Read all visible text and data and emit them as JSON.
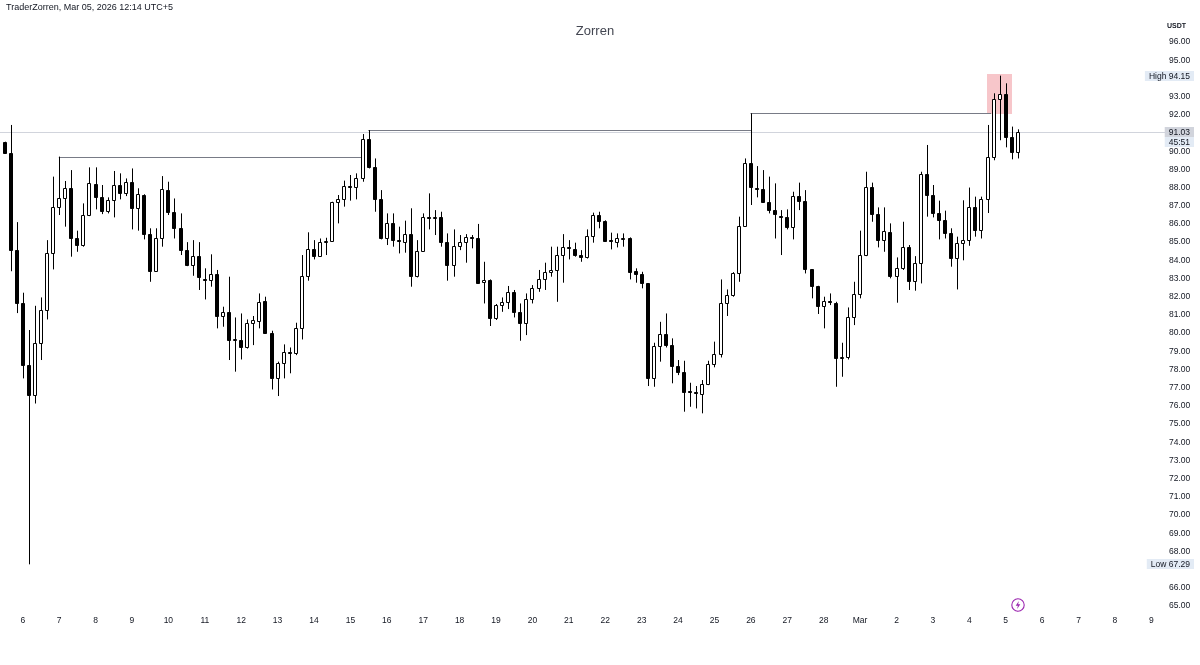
{
  "chart_data": {
    "type": "candlestick",
    "title": "Zorren",
    "ylabel": "USDT",
    "annotations": [
      "TraderZorren, Mar 05, 2026 12:14 UTC+5",
      "High 94.15",
      "Low 67.29",
      {
        "text": "45:51",
        "y": 91.03
      }
    ],
    "x": [
      "2026-02-05T12:00",
      "2026-02-05T16:00",
      "2026-02-05T20:00",
      "2026-02-06T00:00",
      "2026-02-06T04:00",
      "2026-02-06T08:00",
      "2026-02-06T12:00",
      "2026-02-06T16:00",
      "2026-02-06T20:00",
      "2026-02-07T00:00",
      "2026-02-07T04:00",
      "2026-02-07T08:00",
      "2026-02-07T12:00",
      "2026-02-07T16:00",
      "2026-02-07T20:00",
      "2026-02-08T00:00",
      "2026-02-08T04:00",
      "2026-02-08T08:00",
      "2026-02-08T12:00",
      "2026-02-08T16:00",
      "2026-02-08T20:00",
      "2026-02-09T00:00",
      "2026-02-09T04:00",
      "2026-02-09T08:00",
      "2026-02-09T12:00",
      "2026-02-09T16:00",
      "2026-02-09T20:00",
      "2026-02-10T00:00",
      "2026-02-10T04:00",
      "2026-02-10T08:00",
      "2026-02-10T12:00",
      "2026-02-10T16:00",
      "2026-02-10T20:00",
      "2026-02-11T00:00",
      "2026-02-11T04:00",
      "2026-02-11T08:00",
      "2026-02-11T12:00",
      "2026-02-11T16:00",
      "2026-02-11T20:00",
      "2026-02-12T00:00",
      "2026-02-12T04:00",
      "2026-02-12T08:00",
      "2026-02-12T12:00",
      "2026-02-12T16:00",
      "2026-02-12T20:00",
      "2026-02-13T00:00",
      "2026-02-13T04:00",
      "2026-02-13T08:00",
      "2026-02-13T12:00",
      "2026-02-13T16:00",
      "2026-02-13T20:00",
      "2026-02-14T00:00",
      "2026-02-14T04:00",
      "2026-02-14T08:00",
      "2026-02-14T12:00",
      "2026-02-14T16:00",
      "2026-02-14T20:00",
      "2026-02-15T00:00",
      "2026-02-15T04:00",
      "2026-02-15T08:00",
      "2026-02-15T12:00",
      "2026-02-15T16:00",
      "2026-02-15T20:00",
      "2026-02-16T00:00",
      "2026-02-16T04:00",
      "2026-02-16T08:00",
      "2026-02-16T12:00",
      "2026-02-16T16:00",
      "2026-02-16T20:00",
      "2026-02-17T00:00",
      "2026-02-17T04:00",
      "2026-02-17T08:00",
      "2026-02-17T12:00",
      "2026-02-17T16:00",
      "2026-02-17T20:00",
      "2026-02-18T00:00",
      "2026-02-18T04:00",
      "2026-02-18T08:00",
      "2026-02-18T12:00",
      "2026-02-18T16:00",
      "2026-02-18T20:00",
      "2026-02-19T00:00",
      "2026-02-19T04:00",
      "2026-02-19T08:00",
      "2026-02-19T12:00",
      "2026-02-19T16:00",
      "2026-02-19T20:00",
      "2026-02-20T00:00",
      "2026-02-20T04:00",
      "2026-02-20T08:00",
      "2026-02-20T12:00",
      "2026-02-20T16:00",
      "2026-02-20T20:00",
      "2026-02-21T00:00",
      "2026-02-21T04:00",
      "2026-02-21T08:00",
      "2026-02-21T12:00",
      "2026-02-21T16:00",
      "2026-02-21T20:00",
      "2026-02-22T00:00",
      "2026-02-22T04:00",
      "2026-02-22T08:00",
      "2026-02-22T12:00",
      "2026-02-22T16:00",
      "2026-02-22T20:00",
      "2026-02-23T00:00",
      "2026-02-23T04:00",
      "2026-02-23T08:00",
      "2026-02-23T12:00",
      "2026-02-23T16:00",
      "2026-02-23T20:00",
      "2026-02-24T00:00",
      "2026-02-24T04:00",
      "2026-02-24T08:00",
      "2026-02-24T12:00",
      "2026-02-24T16:00",
      "2026-02-24T20:00",
      "2026-02-25T00:00",
      "2026-02-25T04:00",
      "2026-02-25T08:00",
      "2026-02-25T12:00",
      "2026-02-25T16:00",
      "2026-02-25T20:00",
      "2026-02-26T00:00",
      "2026-02-26T04:00",
      "2026-02-26T08:00",
      "2026-02-26T12:00",
      "2026-02-26T16:00",
      "2026-02-26T20:00",
      "2026-02-27T00:00",
      "2026-02-27T04:00",
      "2026-02-27T08:00",
      "2026-02-27T12:00",
      "2026-02-27T16:00",
      "2026-02-27T20:00",
      "2026-02-28T00:00",
      "2026-02-28T04:00",
      "2026-02-28T08:00",
      "2026-02-28T12:00",
      "2026-02-28T16:00",
      "2026-02-28T20:00",
      "2026-03-01T00:00",
      "2026-03-01T04:00",
      "2026-03-01T08:00",
      "2026-03-01T12:00",
      "2026-03-01T16:00",
      "2026-03-01T20:00",
      "2026-03-02T00:00",
      "2026-03-02T04:00",
      "2026-03-02T08:00",
      "2026-03-02T12:00",
      "2026-03-02T16:00",
      "2026-03-02T20:00",
      "2026-03-03T00:00",
      "2026-03-03T04:00",
      "2026-03-03T08:00",
      "2026-03-03T12:00",
      "2026-03-03T16:00",
      "2026-03-03T20:00",
      "2026-03-04T00:00",
      "2026-03-04T04:00",
      "2026-03-04T08:00",
      "2026-03-04T12:00",
      "2026-03-04T16:00",
      "2026-03-04T20:00",
      "2026-03-05T00:00",
      "2026-03-05T04:00",
      "2026-03-05T08:00"
    ],
    "ohlc": [
      [
        90.5,
        90.52,
        89.92,
        89.92
      ],
      [
        89.92,
        91.44,
        83.4,
        84.56
      ],
      [
        84.56,
        86.1,
        81.1,
        81.63
      ],
      [
        81.63,
        82.22,
        77.51,
        78.24
      ],
      [
        78.24,
        80.17,
        67.29,
        76.59
      ],
      [
        76.59,
        81.5,
        76.13,
        79.43
      ],
      [
        79.43,
        81.96,
        78.52,
        81.27
      ],
      [
        81.27,
        85.11,
        80.75,
        84.38
      ],
      [
        84.38,
        88.6,
        83.5,
        86.95
      ],
      [
        86.95,
        89.7,
        86.49,
        87.4
      ],
      [
        87.4,
        88.36,
        85.85,
        87.99
      ],
      [
        87.99,
        88.96,
        84.2,
        85.2
      ],
      [
        85.2,
        85.63,
        84.47,
        84.84
      ],
      [
        84.84,
        87.13,
        84.75,
        86.49
      ],
      [
        86.49,
        89.11,
        86.43,
        88.23
      ],
      [
        88.19,
        89.11,
        86.8,
        87.5
      ],
      [
        87.5,
        88.14,
        86.54,
        86.71
      ],
      [
        86.71,
        87.46,
        86.58,
        87.31
      ],
      [
        87.31,
        88.91,
        86.36,
        88.14
      ],
      [
        88.14,
        88.78,
        87.35,
        87.72
      ],
      [
        87.72,
        88.5,
        87.53,
        88.32
      ],
      [
        88.32,
        89.05,
        85.7,
        86.89
      ],
      [
        86.89,
        87.96,
        85.63,
        87.63
      ],
      [
        87.59,
        87.63,
        85.15,
        85.44
      ],
      [
        85.44,
        85.76,
        82.82,
        83.41
      ],
      [
        83.41,
        85.76,
        83.37,
        85.2
      ],
      [
        85.2,
        88.63,
        84.75,
        87.9
      ],
      [
        87.86,
        88.32,
        86.49,
        86.67
      ],
      [
        86.67,
        87.4,
        85.2,
        85.76
      ],
      [
        85.76,
        86.58,
        84.29,
        84.56
      ],
      [
        84.56,
        85.0,
        83.68,
        83.74
      ],
      [
        83.74,
        85.11,
        83.15,
        84.24
      ],
      [
        84.24,
        85.0,
        82.37,
        83.1
      ],
      [
        83.0,
        83.56,
        81.85,
        82.95
      ],
      [
        82.91,
        84.33,
        82.55,
        83.24
      ],
      [
        83.24,
        83.47,
        80.26,
        80.94
      ],
      [
        80.94,
        81.45,
        80.35,
        81.17
      ],
      [
        81.17,
        83.1,
        78.52,
        79.62
      ],
      [
        79.62,
        80.86,
        77.88,
        79.65
      ],
      [
        79.62,
        81.08,
        78.55,
        79.21
      ],
      [
        79.21,
        80.75,
        79.15,
        80.53
      ],
      [
        80.53,
        80.94,
        79.34,
        80.72
      ],
      [
        80.68,
        82.18,
        80.26,
        81.72
      ],
      [
        81.76,
        82.0,
        80.0,
        80.02
      ],
      [
        80.02,
        80.13,
        76.9,
        77.51
      ],
      [
        77.51,
        78.43,
        76.54,
        78.33
      ],
      [
        78.33,
        79.38,
        77.51,
        78.98
      ],
      [
        78.98,
        79.21,
        77.79,
        78.94
      ],
      [
        78.88,
        80.57,
        78.79,
        80.26
      ],
      [
        80.26,
        84.29,
        79.65,
        83.15
      ],
      [
        83.15,
        85.54,
        82.88,
        84.6
      ],
      [
        84.6,
        85.11,
        84.05,
        84.25
      ],
      [
        84.25,
        85.2,
        84.2,
        84.99
      ],
      [
        84.99,
        85.24,
        84.29,
        85.08
      ],
      [
        85.08,
        87.22,
        85.05,
        87.19
      ],
      [
        87.19,
        87.59,
        86.03,
        87.35
      ],
      [
        87.35,
        88.38,
        86.95,
        88.08
      ],
      [
        88.1,
        88.69,
        87.28,
        88.05
      ],
      [
        88.01,
        88.78,
        87.35,
        88.5
      ],
      [
        88.5,
        90.94,
        88.32,
        90.65
      ],
      [
        90.65,
        91.16,
        89.05,
        89.11
      ],
      [
        89.11,
        89.6,
        86.67,
        87.35
      ],
      [
        87.35,
        87.86,
        85.15,
        85.24
      ],
      [
        85.24,
        86.58,
        84.84,
        86.03
      ],
      [
        86.07,
        86.58,
        84.75,
        85.12
      ],
      [
        85.1,
        85.85,
        84.38,
        85.05
      ],
      [
        85.02,
        86.18,
        84.42,
        85.44
      ],
      [
        85.44,
        86.86,
        82.55,
        83.13
      ],
      [
        83.13,
        85.11,
        83.06,
        84.53
      ],
      [
        84.53,
        86.58,
        84.47,
        86.36
      ],
      [
        86.38,
        87.68,
        85.7,
        86.34
      ],
      [
        86.3,
        86.76,
        85.39,
        86.4
      ],
      [
        86.36,
        86.67,
        84.75,
        85.02
      ],
      [
        85.02,
        85.48,
        82.88,
        83.74
      ],
      [
        83.74,
        85.7,
        83.1,
        84.79
      ],
      [
        84.79,
        85.39,
        84.56,
        85.0
      ],
      [
        85.0,
        85.44,
        83.87,
        85.26
      ],
      [
        85.27,
        85.39,
        84.66,
        85.22
      ],
      [
        85.2,
        86.0,
        82.75,
        82.77
      ],
      [
        82.8,
        83.92,
        81.63,
        82.91
      ],
      [
        82.91,
        82.95,
        80.39,
        80.81
      ],
      [
        80.81,
        81.6,
        80.72,
        81.54
      ],
      [
        81.54,
        81.96,
        81.17,
        81.72
      ],
      [
        81.72,
        82.59,
        81.32,
        82.27
      ],
      [
        82.27,
        82.37,
        80.86,
        81.17
      ],
      [
        81.17,
        81.63,
        79.58,
        80.57
      ],
      [
        80.57,
        82.18,
        79.89,
        81.85
      ],
      [
        81.85,
        82.64,
        81.63,
        82.46
      ],
      [
        82.46,
        83.47,
        82.27,
        82.95
      ],
      [
        82.95,
        83.87,
        82.37,
        83.37
      ],
      [
        83.34,
        84.75,
        83.1,
        83.47
      ],
      [
        83.47,
        84.75,
        81.72,
        84.29
      ],
      [
        84.29,
        85.44,
        82.77,
        84.75
      ],
      [
        84.73,
        85.11,
        84.05,
        84.67
      ],
      [
        84.6,
        84.97,
        84.2,
        84.29
      ],
      [
        84.27,
        84.56,
        83.92,
        84.2
      ],
      [
        84.16,
        85.7,
        84.1,
        85.33
      ],
      [
        85.33,
        86.62,
        84.97,
        86.49
      ],
      [
        86.49,
        86.67,
        85.76,
        86.16
      ],
      [
        86.16,
        86.2,
        85.02,
        85.08
      ],
      [
        85.1,
        85.52,
        84.6,
        85.05
      ],
      [
        85.02,
        85.48,
        84.71,
        85.2
      ],
      [
        85.2,
        85.48,
        84.75,
        85.22
      ],
      [
        85.2,
        85.26,
        82.95,
        83.37
      ],
      [
        83.41,
        83.56,
        82.77,
        83.23
      ],
      [
        83.23,
        83.37,
        82.46,
        82.73
      ],
      [
        82.73,
        82.75,
        77.09,
        77.51
      ],
      [
        77.51,
        79.47,
        77.05,
        79.29
      ],
      [
        79.29,
        80.62,
        78.43,
        79.95
      ],
      [
        79.95,
        81.08,
        79.21,
        79.34
      ],
      [
        79.34,
        79.71,
        77.24,
        78.21
      ],
      [
        78.21,
        78.52,
        77.69,
        77.84
      ],
      [
        77.84,
        78.48,
        75.68,
        76.78
      ],
      [
        76.8,
        77.27,
        75.95,
        76.76
      ],
      [
        76.76,
        77.09,
        75.86,
        76.7
      ],
      [
        76.65,
        77.42,
        75.59,
        77.2
      ],
      [
        77.2,
        78.48,
        77.14,
        78.3
      ],
      [
        78.3,
        79.53,
        78.12,
        78.85
      ],
      [
        78.85,
        82.95,
        78.66,
        81.67
      ],
      [
        81.67,
        82.4,
        80.94,
        82.09
      ],
      [
        82.09,
        83.35,
        82.0,
        83.32
      ],
      [
        83.32,
        86.4,
        82.82,
        85.88
      ],
      [
        85.88,
        89.6,
        85.85,
        89.37
      ],
      [
        89.37,
        92.08,
        87.04,
        88.01
      ],
      [
        88.0,
        89.18,
        87.46,
        87.92
      ],
      [
        87.9,
        88.96,
        87.17,
        87.22
      ],
      [
        87.22,
        88.6,
        86.58,
        86.76
      ],
      [
        86.76,
        88.23,
        85.2,
        86.53
      ],
      [
        86.46,
        86.76,
        84.29,
        86.4
      ],
      [
        86.4,
        86.8,
        85.7,
        85.85
      ],
      [
        85.85,
        87.77,
        85.15,
        87.53
      ],
      [
        87.53,
        88.27,
        86.76,
        87.26
      ],
      [
        87.26,
        87.86,
        83.28,
        83.5
      ],
      [
        83.5,
        83.52,
        81.91,
        82.59
      ],
      [
        82.59,
        82.6,
        81.05,
        81.5
      ],
      [
        81.5,
        82.0,
        80.26,
        81.76
      ],
      [
        81.76,
        82.18,
        81.54,
        81.7
      ],
      [
        81.67,
        81.72,
        77.05,
        78.61
      ],
      [
        78.61,
        79.47,
        77.6,
        78.7
      ],
      [
        78.66,
        81.41,
        78.55,
        80.86
      ],
      [
        80.86,
        82.82,
        80.44,
        82.14
      ],
      [
        82.14,
        85.63,
        81.91,
        84.29
      ],
      [
        84.29,
        88.87,
        84.23,
        88.01
      ],
      [
        88.01,
        88.27,
        86.12,
        86.54
      ],
      [
        86.54,
        86.91,
        84.71,
        85.11
      ],
      [
        85.11,
        86.91,
        84.47,
        85.63
      ],
      [
        85.57,
        86.03,
        83.01,
        83.15
      ],
      [
        83.15,
        84.16,
        81.67,
        83.56
      ],
      [
        83.56,
        86.12,
        83.47,
        84.71
      ],
      [
        84.71,
        84.84,
        82.37,
        82.88
      ],
      [
        82.88,
        84.23,
        82.33,
        83.83
      ],
      [
        83.83,
        88.87,
        82.73,
        88.74
      ],
      [
        88.74,
        90.34,
        86.4,
        87.59
      ],
      [
        87.59,
        88.14,
        86.36,
        86.58
      ],
      [
        86.58,
        87.28,
        85.15,
        86.21
      ],
      [
        86.21,
        86.73,
        85.2,
        85.52
      ],
      [
        85.52,
        85.76,
        83.65,
        84.14
      ],
      [
        84.14,
        85.3,
        82.4,
        84.97
      ],
      [
        84.97,
        87.3,
        84.0,
        85.1
      ],
      [
        85.1,
        88.0,
        84.8,
        86.91
      ],
      [
        86.91,
        87.5,
        85.3,
        85.66
      ],
      [
        85.66,
        87.5,
        85.2,
        87.35
      ],
      [
        87.35,
        91.44,
        86.6,
        89.7
      ],
      [
        89.7,
        93.18,
        89.5,
        92.85
      ],
      [
        92.85,
        94.15,
        90.6,
        93.14
      ],
      [
        93.14,
        93.73,
        90.21,
        90.8
      ],
      [
        90.8,
        91.35,
        89.55,
        89.97
      ],
      [
        89.97,
        91.2,
        89.6,
        91.03
      ]
    ],
    "colors": [
      "#000000",
      "#000000",
      "#000000",
      "#000000",
      "#000000",
      "#ffffff",
      "#ffffff",
      "#ffffff",
      "#ffffff",
      "#ffffff",
      "#ffffff",
      "#000000",
      "#000000",
      "#ffffff",
      "#ffffff",
      "#000000",
      "#000000",
      "#ffffff",
      "#ffffff",
      "#000000",
      "#ffffff",
      "#000000",
      "#ffffff",
      "#000000",
      "#000000",
      "#ffffff",
      "#ffffff",
      "#000000",
      "#000000",
      "#000000",
      "#000000",
      "#ffffff",
      "#000000",
      "#000000",
      "#ffffff",
      "#000000",
      "#ffffff",
      "#000000",
      "#ffffff",
      "#000000",
      "#ffffff",
      "#ffffff",
      "#ffffff",
      "#000000",
      "#000000",
      "#ffffff",
      "#ffffff",
      "#000000",
      "#ffffff",
      "#ffffff",
      "#ffffff",
      "#000000",
      "#ffffff",
      "#ffffff",
      "#ffffff",
      "#ffffff",
      "#ffffff",
      "#000000",
      "#ffffff",
      "#ffffff",
      "#000000",
      "#000000",
      "#000000",
      "#ffffff",
      "#000000",
      "#000000",
      "#ffffff",
      "#000000",
      "#ffffff",
      "#ffffff",
      "#000000",
      "#ffffff",
      "#000000",
      "#000000",
      "#ffffff",
      "#ffffff",
      "#ffffff",
      "#000000",
      "#000000",
      "#ffffff",
      "#000000",
      "#ffffff",
      "#ffffff",
      "#ffffff",
      "#000000",
      "#000000",
      "#ffffff",
      "#ffffff",
      "#ffffff",
      "#ffffff",
      "#ffffff",
      "#ffffff",
      "#ffffff",
      "#000000",
      "#000000",
      "#000000",
      "#ffffff",
      "#ffffff",
      "#000000",
      "#000000",
      "#000000",
      "#ffffff",
      "#ffffff",
      "#000000",
      "#000000",
      "#000000",
      "#000000",
      "#ffffff",
      "#ffffff",
      "#000000",
      "#000000",
      "#000000",
      "#000000",
      "#000000",
      "#000000",
      "#ffffff",
      "#ffffff",
      "#ffffff",
      "#ffffff",
      "#ffffff",
      "#ffffff",
      "#ffffff",
      "#ffffff",
      "#000000",
      "#000000",
      "#000000",
      "#000000",
      "#000000",
      "#000000",
      "#000000",
      "#ffffff",
      "#000000",
      "#000000",
      "#000000",
      "#000000",
      "#ffffff",
      "#000000",
      "#000000",
      "#ffffff",
      "#ffffff",
      "#ffffff",
      "#ffffff",
      "#ffffff",
      "#000000",
      "#000000",
      "#ffffff",
      "#000000",
      "#ffffff",
      "#ffffff",
      "#000000",
      "#ffffff",
      "#ffffff",
      "#000000",
      "#000000",
      "#000000",
      "#000000",
      "#000000",
      "#ffffff",
      "#ffffff",
      "#ffffff",
      "#000000",
      "#ffffff",
      "#ffffff",
      "#ffffff",
      "#ffffff",
      "#000000",
      "#000000",
      "#ffffff"
    ],
    "series": [
      {
        "type": "area",
        "color": "#f7c6ca",
        "x": [
          "2026-03-04T12:00",
          "2026-03-05T04:00"
        ],
        "values": [
          null,
          null
        ],
        "lower": [
          92.08,
          92.08
        ],
        "upper": [
          94.24,
          94.24
        ]
      },
      {
        "type": "line",
        "color": "#787b86",
        "x": [
          "2026-02-07T00:00",
          "2026-02-15T08:00"
        ],
        "values": [
          89.7,
          89.7
        ]
      },
      {
        "type": "line",
        "color": "#787b86",
        "x": [
          "2026-02-15T12:00",
          "2026-02-26T00:00"
        ],
        "values": [
          91.16,
          91.16
        ]
      },
      {
        "type": "line",
        "color": "#787b86",
        "x": [
          "2026-02-26T00:00",
          "2026-03-04T14:00"
        ],
        "values": [
          92.08,
          92.08
        ]
      }
    ],
    "ref_lines": [
      {
        "axis": "y",
        "value": 91.03,
        "label": "91.03",
        "color": "#d1d4dc"
      }
    ],
    "xlim": [
      "2026-02-05T09:00",
      "2026-03-09T09:00"
    ],
    "xticks": [
      {
        "value": "2026-02-06",
        "label": "6"
      },
      {
        "value": "2026-02-07",
        "label": "7"
      },
      {
        "value": "2026-02-08",
        "label": "8"
      },
      {
        "value": "2026-02-09",
        "label": "9"
      },
      {
        "value": "2026-02-10",
        "label": "10"
      },
      {
        "value": "2026-02-11",
        "label": "11"
      },
      {
        "value": "2026-02-12",
        "label": "12"
      },
      {
        "value": "2026-02-13",
        "label": "13"
      },
      {
        "value": "2026-02-14",
        "label": "14"
      },
      {
        "value": "2026-02-15",
        "label": "15"
      },
      {
        "value": "2026-02-16",
        "label": "16"
      },
      {
        "value": "2026-02-17",
        "label": "17"
      },
      {
        "value": "2026-02-18",
        "label": "18"
      },
      {
        "value": "2026-02-19",
        "label": "19"
      },
      {
        "value": "2026-02-20",
        "label": "20"
      },
      {
        "value": "2026-02-21",
        "label": "21"
      },
      {
        "value": "2026-02-22",
        "label": "22"
      },
      {
        "value": "2026-02-23",
        "label": "23"
      },
      {
        "value": "2026-02-24",
        "label": "24"
      },
      {
        "value": "2026-02-25",
        "label": "25"
      },
      {
        "value": "2026-02-26",
        "label": "26"
      },
      {
        "value": "2026-02-27",
        "label": "27"
      },
      {
        "value": "2026-02-28",
        "label": "28"
      },
      {
        "value": "2026-03-01",
        "label": "Mar"
      },
      {
        "value": "2026-03-02",
        "label": "2"
      },
      {
        "value": "2026-03-03",
        "label": "3"
      },
      {
        "value": "2026-03-04",
        "label": "4"
      },
      {
        "value": "2026-03-05",
        "label": "5"
      },
      {
        "value": "2026-03-06",
        "label": "6"
      },
      {
        "value": "2026-03-07",
        "label": "7"
      },
      {
        "value": "2026-03-08",
        "label": "8"
      },
      {
        "value": "2026-03-09",
        "label": "9"
      }
    ],
    "ylim": [
      65,
      96
    ],
    "yticks": [
      {
        "value": 65,
        "label": "65.00"
      },
      {
        "value": 66,
        "label": "66.00"
      },
      {
        "value": 68,
        "label": "68.00"
      },
      {
        "value": 69,
        "label": "69.00"
      },
      {
        "value": 70,
        "label": "70.00"
      },
      {
        "value": 71,
        "label": "71.00"
      },
      {
        "value": 72,
        "label": "72.00"
      },
      {
        "value": 73,
        "label": "73.00"
      },
      {
        "value": 74,
        "label": "74.00"
      },
      {
        "value": 75,
        "label": "75.00"
      },
      {
        "value": 76,
        "label": "76.00"
      },
      {
        "value": 77,
        "label": "77.00"
      },
      {
        "value": 78,
        "label": "78.00"
      },
      {
        "value": 79,
        "label": "79.00"
      },
      {
        "value": 80,
        "label": "80.00"
      },
      {
        "value": 81,
        "label": "81.00"
      },
      {
        "value": 82,
        "label": "82.00"
      },
      {
        "value": 83,
        "label": "83.00"
      },
      {
        "value": 84,
        "label": "84.00"
      },
      {
        "value": 85,
        "label": "85.00"
      },
      {
        "value": 86,
        "label": "86.00"
      },
      {
        "value": 87,
        "label": "87.00"
      },
      {
        "value": 88,
        "label": "88.00"
      },
      {
        "value": 89,
        "label": "89.00"
      },
      {
        "value": 90,
        "label": "90.00"
      },
      {
        "value": 92,
        "label": "92.00"
      },
      {
        "value": 93,
        "label": "93.00"
      },
      {
        "value": 95,
        "label": "95.00"
      },
      {
        "value": 96,
        "label": "96.00"
      }
    ]
  }
}
